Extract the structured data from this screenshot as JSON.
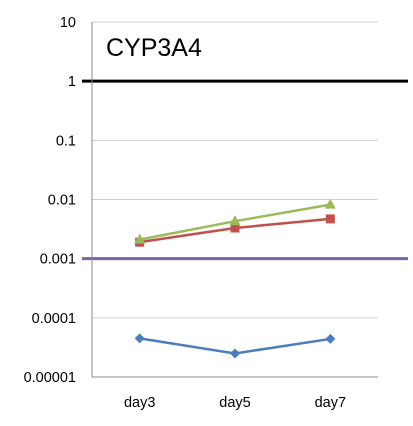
{
  "chart_data": {
    "type": "line",
    "title": "CYP3A4",
    "y_scale": "log",
    "ylim": [
      1e-05,
      10
    ],
    "y_ticks": [
      "10",
      "1",
      "0.1",
      "0.01",
      "0.001",
      "0.0001",
      "0.00001"
    ],
    "categories": [
      "day3",
      "day5",
      "day7"
    ],
    "grid": true,
    "series": [
      {
        "color": "#4a7ebf",
        "marker": "diamond",
        "values": [
          4.5e-05,
          2.5e-05,
          4.4e-05
        ]
      },
      {
        "color": "#c0504d",
        "marker": "square",
        "values": [
          0.0019,
          0.0033,
          0.0047
        ]
      },
      {
        "color": "#9bbb59",
        "marker": "triangle",
        "values": [
          0.0021,
          0.0043,
          0.0082
        ]
      }
    ],
    "reference_lines": [
      {
        "value": 1,
        "color": "#000000"
      },
      {
        "value": 0.001,
        "color": "#7f5fa6"
      }
    ]
  }
}
